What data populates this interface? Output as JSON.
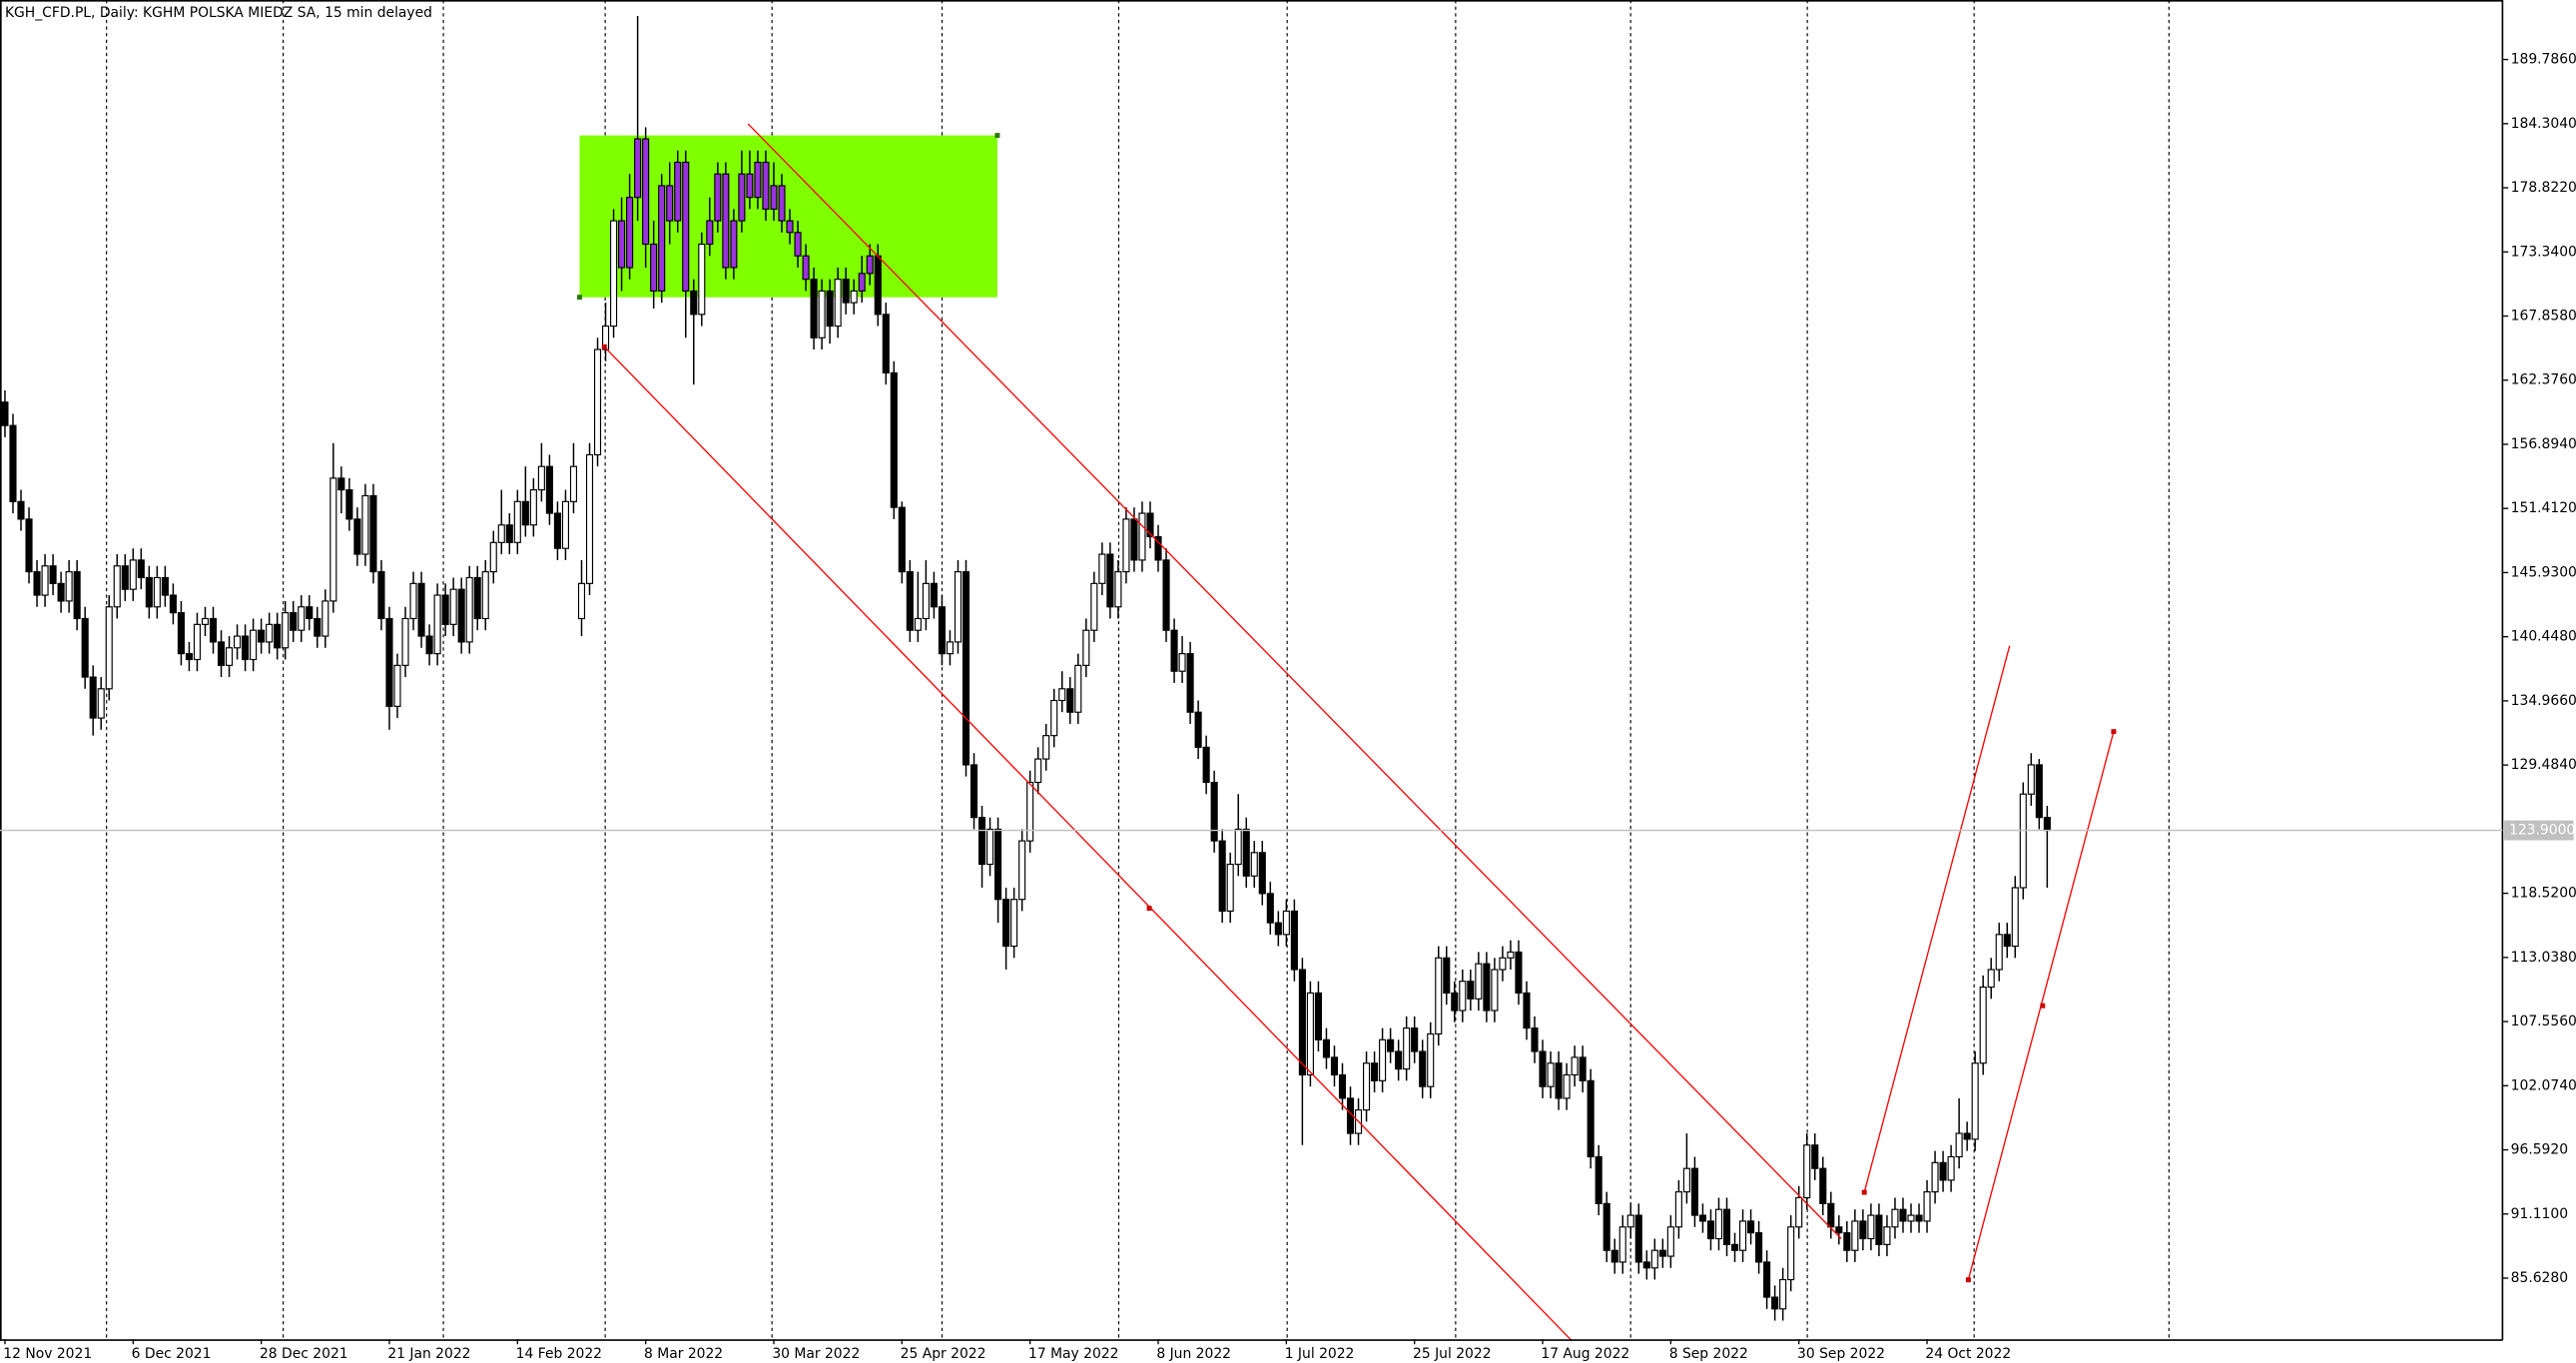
{
  "chart_data": {
    "type": "candlestick",
    "title": "KGH_CFD.PL, Daily:  KGHM POLSKA MIEDZ SA, 15 min delayed",
    "categories": [
      "12 Nov 2021",
      null,
      null,
      null,
      null,
      null,
      null,
      null,
      null,
      null,
      null,
      null,
      null,
      null,
      null,
      null,
      "6 Dec 2021",
      null,
      null,
      null,
      null,
      null,
      null,
      null,
      null,
      null,
      null,
      null,
      null,
      null,
      null,
      null,
      "28 Dec 2021",
      null,
      null,
      null,
      null,
      null,
      null,
      null,
      null,
      null,
      null,
      null,
      null,
      null,
      null,
      null,
      "21 Jan 2022",
      null,
      null,
      null,
      null,
      null,
      null,
      null,
      null,
      null,
      null,
      null,
      null,
      null,
      null,
      null,
      "14 Feb 2022",
      null,
      null,
      null,
      null,
      null,
      null,
      null,
      null,
      null,
      null,
      null,
      null,
      null,
      null,
      null,
      "8 Mar 2022",
      null,
      null,
      null,
      null,
      null,
      null,
      null,
      null,
      null,
      null,
      null,
      null,
      null,
      null,
      null,
      "30 Mar 2022",
      null,
      null,
      null,
      null,
      null,
      null,
      null,
      null,
      null,
      null,
      null,
      null,
      null,
      null,
      null,
      "25 Apr 2022",
      null,
      null,
      null,
      null,
      null,
      null,
      null,
      null,
      null,
      null,
      null,
      null,
      null,
      null,
      null,
      "17 May 2022",
      null,
      null,
      null,
      null,
      null,
      null,
      null,
      null,
      null,
      null,
      null,
      null,
      null,
      null,
      null,
      "8 Jun 2022",
      null,
      null,
      null,
      null,
      null,
      null,
      null,
      null,
      null,
      null,
      null,
      null,
      null,
      null,
      null,
      "1 Jul 2022",
      null,
      null,
      null,
      null,
      null,
      null,
      null,
      null,
      null,
      null,
      null,
      null,
      null,
      null,
      null,
      "25 Jul 2022",
      null,
      null,
      null,
      null,
      null,
      null,
      null,
      null,
      null,
      null,
      null,
      null,
      null,
      null,
      null,
      "17 Aug 2022",
      null,
      null,
      null,
      null,
      null,
      null,
      null,
      null,
      null,
      null,
      null,
      null,
      null,
      null,
      null,
      "8 Sep 2022",
      null,
      null,
      null,
      null,
      null,
      null,
      null,
      null,
      null,
      null,
      null,
      null,
      null,
      null,
      null,
      "30 Sep 2022",
      null,
      null,
      null,
      null,
      null,
      null,
      null,
      null,
      null,
      null,
      null,
      null,
      null,
      null,
      null,
      "24 Oct 2022",
      null,
      null,
      null,
      null,
      null,
      null,
      null,
      null,
      null,
      null,
      null,
      null,
      null,
      null,
      null
    ],
    "open": [
      160.5,
      158.5,
      152.0,
      150.5,
      146.0,
      144.0,
      146.5,
      145.0,
      143.5,
      146.0,
      142.0,
      137.0,
      133.5,
      136.0,
      143.0,
      146.5,
      144.5,
      147.0,
      145.5,
      143.0,
      145.5,
      144.0,
      142.5,
      139.0,
      138.5,
      141.5,
      142.0,
      140.0,
      138.0,
      139.5,
      140.5,
      138.5,
      141.0,
      140.0,
      141.5,
      139.5,
      142.5,
      141.0,
      143.0,
      142.0,
      140.5,
      143.5,
      154.0,
      153.0,
      150.5,
      147.5,
      152.5,
      146.0,
      142.0,
      134.5,
      138.0,
      142.0,
      145.0,
      140.5,
      139.0,
      144.0,
      141.5,
      144.5,
      140.0,
      145.5,
      142.0,
      146.0,
      148.5,
      150.0,
      148.5,
      152.0,
      150.0,
      153.0,
      155.0,
      151.0,
      148.0,
      152.0,
      142.0,
      145.0,
      156.0,
      165.0,
      167.0,
      176.0,
      172.0,
      178.0,
      183.0,
      174.0,
      170.0,
      179.0,
      176.0,
      181.0,
      170.0,
      168.0,
      174.0,
      176.0,
      180.0,
      172.0,
      176.0,
      180.0,
      178.0,
      181.0,
      177.0,
      179.0,
      176.0,
      175.0,
      173.0,
      171.0,
      166.0,
      170.0,
      167.0,
      171.0,
      169.0,
      170.0,
      171.5,
      173.0,
      168.0,
      163.0,
      151.5,
      146.0,
      141.0,
      142.0,
      145.0,
      143.0,
      139.0,
      140.0,
      146.0,
      129.5,
      125.0,
      121.0,
      124.0,
      118.0,
      114.0,
      118.0,
      123.0,
      128.0,
      130.0,
      132.0,
      135.0,
      136.0,
      134.0,
      138.0,
      141.0,
      145.0,
      147.5,
      143.0,
      146.0,
      150.5,
      147.0,
      151.0,
      149.0,
      147.0,
      141.0,
      137.5,
      139.0,
      134.0,
      131.0,
      128.0,
      123.0,
      117.0,
      121.0,
      124.0,
      120.0,
      122.0,
      118.5,
      116.0,
      115.0,
      117.0,
      112.0,
      103.0,
      110.0,
      106.0,
      104.5,
      103.0,
      101.0,
      98.0,
      100.0,
      104.0,
      102.5,
      106.0,
      105.0,
      103.5,
      107.0,
      105.0,
      102.0,
      106.5,
      113.0,
      110.0,
      108.5,
      111.0,
      109.5,
      112.5,
      108.5,
      112.0,
      113.0,
      113.5,
      110.0,
      107.0,
      105.0,
      102.0,
      104.0,
      101.0,
      103.0,
      104.5,
      102.5,
      96.0,
      92.0,
      88.0,
      87.0,
      90.0,
      91.0,
      87.0,
      86.5,
      88.0,
      87.5,
      90.0,
      93.0,
      95.0,
      91.0,
      90.5,
      89.0,
      91.5,
      88.5,
      88.0,
      90.5,
      89.5,
      87.0,
      84.0,
      83.0,
      85.5,
      90.0,
      92.5,
      97.0,
      95.0,
      92.0,
      90.0,
      89.5,
      88.0,
      90.5,
      89.0,
      91.0,
      88.5,
      90.0,
      91.5,
      90.5,
      91.0,
      90.5,
      93.0,
      95.5,
      94.0,
      96.0,
      98.0,
      97.5,
      104.0,
      110.5,
      112.0,
      115.0,
      114.0,
      119.0,
      127.0,
      129.5,
      125.0
    ],
    "high": [
      161.5,
      159.5,
      153.0,
      151.5,
      147.0,
      147.5,
      147.5,
      146.0,
      147.0,
      147.0,
      143.0,
      138.0,
      137.0,
      144.0,
      147.5,
      147.5,
      148.0,
      148.0,
      146.5,
      146.5,
      146.5,
      145.0,
      143.5,
      140.0,
      142.5,
      143.0,
      143.0,
      141.0,
      140.5,
      141.5,
      141.5,
      142.0,
      142.0,
      142.5,
      142.5,
      143.5,
      143.5,
      144.0,
      144.0,
      143.0,
      144.5,
      157.0,
      155.0,
      154.0,
      151.5,
      153.5,
      153.5,
      147.0,
      143.0,
      139.0,
      143.0,
      146.0,
      146.0,
      141.5,
      145.0,
      145.0,
      145.5,
      145.5,
      146.5,
      146.5,
      147.0,
      149.5,
      153.0,
      151.0,
      153.0,
      155.0,
      154.0,
      157.0,
      156.0,
      152.0,
      153.0,
      157.0,
      147.0,
      157.0,
      166.0,
      169.0,
      177.0,
      178.0,
      180.0,
      193.5,
      184.0,
      176.0,
      180.0,
      181.0,
      182.0,
      182.0,
      171.0,
      175.0,
      178.0,
      181.0,
      181.0,
      177.0,
      182.0,
      182.0,
      182.0,
      182.0,
      181.0,
      180.0,
      177.0,
      176.0,
      174.0,
      172.0,
      171.0,
      171.0,
      172.0,
      172.0,
      171.0,
      173.0,
      174.0,
      174.0,
      169.0,
      164.0,
      152.0,
      147.0,
      146.0,
      147.0,
      146.0,
      144.0,
      141.0,
      147.0,
      147.0,
      130.5,
      126.0,
      125.0,
      125.0,
      119.0,
      119.0,
      124.0,
      129.0,
      131.0,
      133.0,
      136.0,
      137.5,
      137.0,
      139.0,
      142.0,
      146.0,
      148.5,
      148.5,
      147.0,
      151.5,
      151.5,
      152.0,
      152.0,
      150.0,
      148.0,
      142.0,
      140.5,
      140.0,
      135.0,
      132.0,
      129.0,
      124.0,
      122.0,
      127.0,
      125.0,
      123.0,
      123.0,
      119.5,
      117.0,
      118.0,
      118.0,
      113.0,
      111.0,
      111.0,
      107.0,
      105.5,
      104.0,
      102.0,
      101.0,
      105.0,
      105.0,
      107.0,
      107.0,
      106.0,
      108.0,
      108.0,
      106.0,
      107.5,
      114.0,
      114.0,
      111.0,
      112.0,
      112.0,
      113.5,
      113.5,
      113.0,
      114.0,
      114.5,
      114.5,
      111.0,
      108.0,
      106.0,
      105.0,
      105.0,
      104.0,
      105.5,
      105.5,
      103.5,
      97.0,
      93.0,
      89.0,
      91.0,
      92.0,
      92.0,
      88.0,
      89.0,
      89.0,
      91.0,
      94.0,
      98.0,
      96.0,
      92.0,
      91.5,
      92.5,
      92.5,
      89.5,
      91.5,
      91.5,
      90.5,
      88.0,
      85.0,
      86.5,
      91.0,
      93.5,
      98.0,
      98.0,
      96.0,
      93.0,
      91.0,
      90.5,
      91.5,
      91.5,
      92.0,
      92.0,
      91.0,
      92.5,
      92.5,
      92.0,
      92.0,
      94.0,
      96.5,
      96.5,
      97.0,
      101.0,
      99.0,
      105.0,
      111.5,
      113.0,
      116.0,
      116.0,
      120.0,
      128.0,
      130.5,
      130.0,
      126.0
    ],
    "low": [
      157.5,
      151.0,
      149.5,
      145.0,
      143.0,
      143.0,
      144.0,
      142.5,
      142.5,
      141.0,
      136.0,
      132.0,
      132.5,
      135.0,
      142.0,
      143.5,
      143.5,
      144.5,
      142.0,
      142.0,
      143.0,
      141.5,
      138.0,
      137.5,
      137.5,
      140.5,
      139.0,
      137.0,
      137.0,
      138.5,
      137.5,
      137.5,
      139.0,
      139.0,
      138.5,
      138.5,
      140.0,
      140.0,
      141.0,
      139.5,
      139.5,
      142.5,
      151.0,
      149.5,
      146.5,
      146.5,
      145.0,
      141.0,
      132.5,
      133.5,
      137.0,
      141.0,
      139.5,
      138.0,
      138.0,
      140.5,
      140.5,
      139.0,
      139.0,
      141.0,
      141.0,
      145.0,
      147.5,
      147.5,
      147.5,
      149.0,
      149.0,
      152.0,
      150.0,
      147.0,
      147.0,
      151.0,
      140.5,
      144.0,
      155.0,
      164.0,
      166.0,
      170.0,
      171.0,
      176.0,
      172.0,
      168.5,
      169.0,
      174.0,
      175.0,
      166.0,
      162.0,
      167.0,
      173.0,
      175.0,
      171.0,
      171.0,
      175.0,
      177.0,
      177.0,
      176.0,
      176.0,
      175.0,
      174.0,
      172.0,
      170.0,
      165.0,
      165.0,
      165.5,
      166.0,
      168.0,
      168.0,
      169.0,
      170.5,
      167.0,
      162.0,
      150.5,
      145.0,
      140.0,
      140.0,
      141.0,
      142.0,
      138.0,
      138.0,
      139.0,
      128.5,
      124.0,
      119.0,
      120.0,
      116.0,
      112.0,
      113.0,
      117.0,
      122.0,
      127.0,
      129.0,
      131.0,
      134.0,
      133.0,
      133.0,
      137.0,
      140.0,
      144.0,
      142.0,
      142.0,
      145.0,
      146.0,
      146.0,
      148.0,
      146.0,
      140.0,
      136.5,
      136.5,
      133.0,
      130.0,
      127.0,
      122.0,
      116.0,
      116.0,
      120.0,
      119.0,
      119.0,
      117.5,
      115.0,
      114.0,
      114.0,
      111.0,
      97.0,
      102.0,
      105.0,
      103.5,
      102.0,
      100.0,
      97.0,
      97.0,
      99.0,
      101.5,
      101.5,
      104.0,
      102.5,
      102.5,
      104.0,
      101.0,
      101.0,
      105.5,
      109.0,
      107.5,
      107.5,
      108.5,
      108.5,
      107.5,
      107.5,
      111.0,
      112.0,
      109.0,
      106.0,
      104.0,
      101.0,
      101.0,
      100.0,
      100.0,
      102.0,
      101.5,
      95.0,
      91.0,
      87.0,
      86.0,
      86.0,
      89.0,
      86.0,
      85.5,
      85.5,
      86.5,
      86.5,
      89.0,
      92.0,
      90.0,
      89.5,
      88.0,
      88.0,
      87.5,
      87.0,
      87.0,
      88.5,
      86.0,
      83.0,
      82.0,
      82.0,
      84.5,
      89.0,
      91.5,
      94.0,
      91.0,
      89.0,
      88.5,
      87.0,
      87.0,
      88.0,
      88.0,
      87.5,
      87.5,
      89.0,
      89.5,
      89.5,
      89.5,
      89.5,
      92.0,
      93.0,
      93.0,
      95.0,
      96.5,
      96.5,
      103.0,
      109.5,
      111.0,
      113.0,
      113.0,
      118.0,
      126.0,
      124.0,
      119.0
    ],
    "close": [
      158.5,
      152.0,
      150.5,
      146.0,
      144.0,
      146.5,
      145.0,
      143.5,
      146.0,
      142.0,
      137.0,
      133.5,
      136.0,
      143.0,
      146.5,
      144.5,
      147.0,
      145.5,
      143.0,
      145.5,
      144.0,
      142.5,
      139.0,
      138.5,
      141.5,
      142.0,
      140.0,
      138.0,
      139.5,
      140.5,
      138.5,
      141.0,
      140.0,
      141.5,
      139.5,
      142.5,
      141.0,
      143.0,
      142.0,
      140.5,
      143.5,
      154.0,
      153.0,
      150.5,
      147.5,
      152.5,
      146.0,
      142.0,
      134.5,
      138.0,
      142.0,
      145.0,
      140.5,
      139.0,
      144.0,
      141.5,
      144.5,
      140.0,
      145.5,
      142.0,
      146.0,
      148.5,
      150.0,
      148.5,
      152.0,
      150.0,
      153.0,
      155.0,
      151.0,
      148.0,
      152.0,
      155.0,
      145.0,
      156.0,
      165.0,
      167.0,
      176.0,
      172.0,
      178.0,
      183.0,
      174.0,
      170.0,
      179.0,
      176.0,
      181.0,
      170.0,
      168.0,
      174.0,
      176.0,
      180.0,
      172.0,
      176.0,
      180.0,
      178.0,
      181.0,
      177.0,
      179.0,
      176.0,
      175.0,
      173.0,
      171.0,
      166.0,
      170.0,
      167.0,
      171.0,
      169.0,
      170.0,
      171.5,
      173.0,
      168.0,
      163.0,
      151.5,
      146.0,
      141.0,
      142.0,
      145.0,
      143.0,
      139.0,
      140.0,
      146.0,
      129.5,
      125.0,
      121.0,
      124.0,
      118.0,
      114.0,
      118.0,
      123.0,
      128.0,
      130.0,
      132.0,
      135.0,
      136.0,
      134.0,
      138.0,
      141.0,
      145.0,
      147.5,
      143.0,
      146.0,
      150.5,
      147.0,
      151.0,
      149.0,
      147.0,
      141.0,
      137.5,
      139.0,
      134.0,
      131.0,
      128.0,
      123.0,
      117.0,
      121.0,
      124.0,
      120.0,
      122.0,
      118.5,
      116.0,
      115.0,
      117.0,
      112.0,
      103.0,
      110.0,
      106.0,
      104.5,
      103.0,
      101.0,
      98.0,
      100.0,
      104.0,
      102.5,
      106.0,
      105.0,
      103.5,
      107.0,
      105.0,
      102.0,
      106.5,
      113.0,
      110.0,
      108.5,
      111.0,
      109.5,
      112.5,
      108.5,
      112.0,
      113.0,
      113.5,
      110.0,
      107.0,
      105.0,
      102.0,
      104.0,
      101.0,
      103.0,
      104.5,
      102.5,
      96.0,
      92.0,
      88.0,
      87.0,
      90.0,
      91.0,
      87.0,
      86.5,
      88.0,
      87.5,
      90.0,
      93.0,
      95.0,
      91.0,
      90.5,
      89.0,
      91.5,
      88.5,
      88.0,
      90.5,
      89.5,
      87.0,
      84.0,
      83.0,
      85.5,
      90.0,
      92.5,
      97.0,
      95.0,
      92.0,
      90.0,
      89.5,
      88.0,
      90.5,
      89.0,
      91.0,
      88.5,
      90.0,
      91.5,
      90.5,
      91.0,
      90.5,
      93.0,
      95.5,
      94.0,
      96.0,
      98.0,
      97.5,
      104.0,
      110.5,
      112.0,
      115.0,
      114.0,
      119.0,
      127.0,
      129.5,
      125.0,
      123.9
    ],
    "ylim": [
      80.4,
      194.87
    ],
    "yticks": [
      {
        "value": 189.786,
        "label": "189.7860"
      },
      {
        "value": 184.304,
        "label": "184.3040"
      },
      {
        "value": 178.822,
        "label": "178.8220"
      },
      {
        "value": 173.34,
        "label": "173.3400"
      },
      {
        "value": 167.858,
        "label": "167.8580"
      },
      {
        "value": 162.376,
        "label": "162.3760"
      },
      {
        "value": 156.894,
        "label": "156.8940"
      },
      {
        "value": 151.412,
        "label": "151.4120"
      },
      {
        "value": 145.93,
        "label": "145.9300"
      },
      {
        "value": 140.448,
        "label": "140.4480"
      },
      {
        "value": 134.966,
        "label": "134.9660"
      },
      {
        "value": 129.484,
        "label": "129.4840"
      },
      {
        "value": 118.52,
        "label": "118.5200"
      },
      {
        "value": 113.038,
        "label": "113.0380"
      },
      {
        "value": 107.556,
        "label": "107.5560"
      },
      {
        "value": 102.074,
        "label": "102.0740"
      },
      {
        "value": 96.592,
        "label": "96.5920"
      },
      {
        "value": 91.11,
        "label": "91.1100"
      },
      {
        "value": 85.628,
        "label": "85.6280"
      }
    ],
    "last_price": {
      "value": 123.9,
      "label": "123.9000"
    }
  }
}
